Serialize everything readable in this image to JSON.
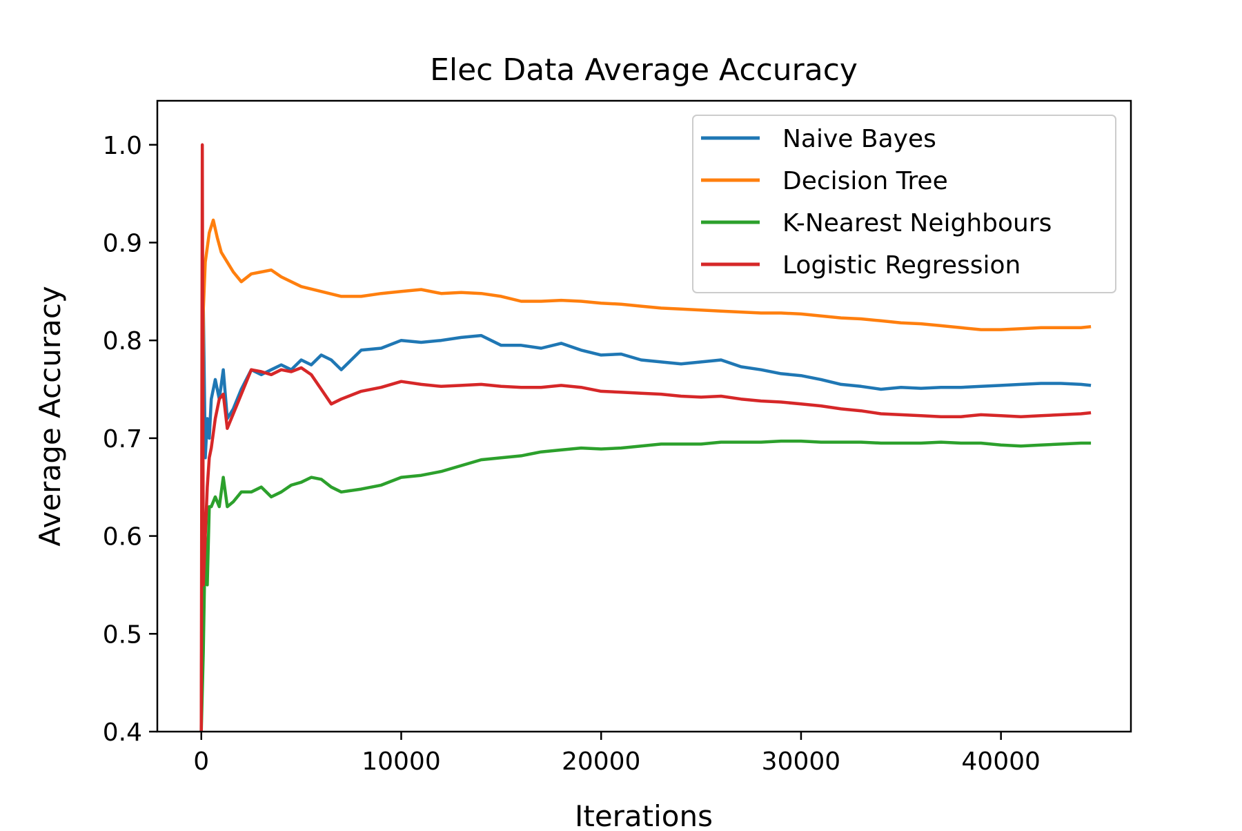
{
  "chart_data": {
    "type": "line",
    "title": "Elec Data Average Accuracy",
    "xlabel": "Iterations",
    "ylabel": "Average Accuracy",
    "xlim": [
      -2200,
      46500
    ],
    "ylim": [
      0.4,
      1.045
    ],
    "xticks": [
      0,
      10000,
      20000,
      30000,
      40000
    ],
    "xtick_labels": [
      "0",
      "10000",
      "20000",
      "30000",
      "40000"
    ],
    "yticks": [
      0.4,
      0.5,
      0.6,
      0.7,
      0.8,
      0.9,
      1.0
    ],
    "ytick_labels": [
      "0.4",
      "0.5",
      "0.6",
      "0.7",
      "0.8",
      "0.9",
      "1.0"
    ],
    "grid": false,
    "legend_position": "top-right",
    "series": [
      {
        "name": "Naive Bayes",
        "color": "#1f77b4",
        "x": [
          0,
          100,
          200,
          300,
          400,
          500,
          700,
          900,
          1100,
          1300,
          1600,
          2000,
          2500,
          3000,
          3500,
          4000,
          4500,
          5000,
          5500,
          6000,
          6500,
          7000,
          8000,
          9000,
          10000,
          11000,
          12000,
          13000,
          14000,
          15000,
          16000,
          17000,
          18000,
          19000,
          20000,
          21000,
          22000,
          23000,
          24000,
          25000,
          26000,
          27000,
          28000,
          29000,
          30000,
          31000,
          32000,
          33000,
          34000,
          35000,
          36000,
          37000,
          38000,
          39000,
          40000,
          41000,
          42000,
          43000,
          44000,
          44500
        ],
        "y": [
          0.4,
          0.84,
          0.68,
          0.72,
          0.7,
          0.74,
          0.76,
          0.74,
          0.77,
          0.72,
          0.73,
          0.75,
          0.77,
          0.765,
          0.77,
          0.775,
          0.77,
          0.78,
          0.775,
          0.785,
          0.78,
          0.77,
          0.79,
          0.792,
          0.8,
          0.798,
          0.8,
          0.803,
          0.805,
          0.795,
          0.795,
          0.792,
          0.797,
          0.79,
          0.785,
          0.786,
          0.78,
          0.778,
          0.776,
          0.778,
          0.78,
          0.773,
          0.77,
          0.766,
          0.764,
          0.76,
          0.755,
          0.753,
          0.75,
          0.752,
          0.751,
          0.752,
          0.752,
          0.753,
          0.754,
          0.755,
          0.756,
          0.756,
          0.755,
          0.754
        ]
      },
      {
        "name": "Decision Tree",
        "color": "#ff7f0e",
        "x": [
          0,
          100,
          200,
          400,
          600,
          800,
          1000,
          1300,
          1600,
          2000,
          2500,
          3000,
          3500,
          4000,
          5000,
          6000,
          7000,
          8000,
          9000,
          10000,
          11000,
          12000,
          13000,
          14000,
          15000,
          16000,
          17000,
          18000,
          19000,
          20000,
          21000,
          22000,
          23000,
          24000,
          25000,
          26000,
          27000,
          28000,
          29000,
          30000,
          31000,
          32000,
          33000,
          34000,
          35000,
          36000,
          37000,
          38000,
          39000,
          40000,
          41000,
          42000,
          43000,
          44000,
          44500
        ],
        "y": [
          0.4,
          0.83,
          0.88,
          0.91,
          0.923,
          0.905,
          0.89,
          0.88,
          0.87,
          0.86,
          0.868,
          0.87,
          0.872,
          0.865,
          0.855,
          0.85,
          0.845,
          0.845,
          0.848,
          0.85,
          0.852,
          0.848,
          0.849,
          0.848,
          0.845,
          0.84,
          0.84,
          0.841,
          0.84,
          0.838,
          0.837,
          0.835,
          0.833,
          0.832,
          0.831,
          0.83,
          0.829,
          0.828,
          0.828,
          0.827,
          0.825,
          0.823,
          0.822,
          0.82,
          0.818,
          0.817,
          0.815,
          0.813,
          0.811,
          0.811,
          0.812,
          0.813,
          0.813,
          0.813,
          0.814
        ]
      },
      {
        "name": "K-Nearest Neighbours",
        "color": "#2ca02c",
        "x": [
          0,
          100,
          200,
          300,
          400,
          500,
          700,
          900,
          1100,
          1300,
          1600,
          2000,
          2500,
          3000,
          3500,
          4000,
          4500,
          5000,
          5500,
          6000,
          6500,
          7000,
          8000,
          9000,
          10000,
          11000,
          12000,
          13000,
          14000,
          15000,
          16000,
          17000,
          18000,
          19000,
          20000,
          21000,
          22000,
          23000,
          24000,
          25000,
          26000,
          27000,
          28000,
          29000,
          30000,
          31000,
          32000,
          33000,
          34000,
          35000,
          36000,
          37000,
          38000,
          39000,
          40000,
          41000,
          42000,
          43000,
          44000,
          44500
        ],
        "y": [
          0.4,
          0.48,
          0.6,
          0.55,
          0.63,
          0.63,
          0.64,
          0.63,
          0.66,
          0.63,
          0.635,
          0.645,
          0.645,
          0.65,
          0.64,
          0.645,
          0.652,
          0.655,
          0.66,
          0.658,
          0.65,
          0.645,
          0.648,
          0.652,
          0.66,
          0.662,
          0.666,
          0.672,
          0.678,
          0.68,
          0.682,
          0.686,
          0.688,
          0.69,
          0.689,
          0.69,
          0.692,
          0.694,
          0.694,
          0.694,
          0.696,
          0.696,
          0.696,
          0.697,
          0.697,
          0.696,
          0.696,
          0.696,
          0.695,
          0.695,
          0.695,
          0.696,
          0.695,
          0.695,
          0.693,
          0.692,
          0.693,
          0.694,
          0.695,
          0.695
        ]
      },
      {
        "name": "Logistic Regression",
        "color": "#d62728",
        "x": [
          0,
          50,
          100,
          200,
          300,
          400,
          500,
          700,
          900,
          1100,
          1300,
          1600,
          2000,
          2500,
          3000,
          3500,
          4000,
          4500,
          5000,
          5500,
          6000,
          6500,
          7000,
          8000,
          9000,
          10000,
          11000,
          12000,
          13000,
          14000,
          15000,
          16000,
          17000,
          18000,
          19000,
          20000,
          21000,
          22000,
          23000,
          24000,
          25000,
          26000,
          27000,
          28000,
          29000,
          30000,
          31000,
          32000,
          33000,
          34000,
          35000,
          36000,
          37000,
          38000,
          39000,
          40000,
          41000,
          42000,
          43000,
          44000,
          44500
        ],
        "y": [
          0.4,
          1.0,
          0.55,
          0.6,
          0.65,
          0.68,
          0.69,
          0.72,
          0.74,
          0.745,
          0.71,
          0.725,
          0.745,
          0.77,
          0.768,
          0.765,
          0.77,
          0.768,
          0.772,
          0.765,
          0.75,
          0.735,
          0.74,
          0.748,
          0.752,
          0.758,
          0.755,
          0.753,
          0.754,
          0.755,
          0.753,
          0.752,
          0.752,
          0.754,
          0.752,
          0.748,
          0.747,
          0.746,
          0.745,
          0.743,
          0.742,
          0.743,
          0.74,
          0.738,
          0.737,
          0.735,
          0.733,
          0.73,
          0.728,
          0.725,
          0.724,
          0.723,
          0.722,
          0.722,
          0.724,
          0.723,
          0.722,
          0.723,
          0.724,
          0.725,
          0.726
        ]
      }
    ]
  }
}
